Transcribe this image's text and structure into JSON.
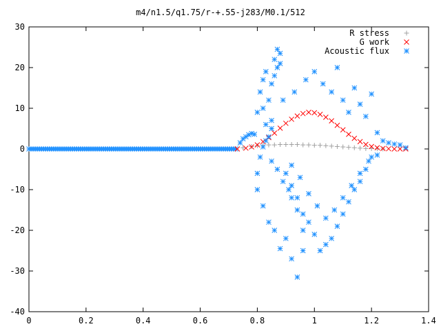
{
  "chart_data": {
    "type": "scatter",
    "title": "m4/n1.5/q1.75/r-+.55-j283/M0.1/512",
    "xlabel": "",
    "ylabel": "",
    "xlim": [
      0,
      1.4
    ],
    "ylim": [
      -40,
      30
    ],
    "xticks": [
      0,
      0.2,
      0.4,
      0.6,
      0.8,
      1,
      1.2,
      1.4
    ],
    "yticks": [
      -40,
      -30,
      -20,
      -10,
      0,
      10,
      20,
      30
    ],
    "xtick_labels": [
      "0",
      "0.2",
      "0.4",
      "0.6",
      "0.8",
      "1",
      "1.2",
      "1.4"
    ],
    "ytick_labels": [
      "-40",
      "-30",
      "-20",
      "-10",
      "0",
      "10",
      "20",
      "30"
    ],
    "grid": false,
    "legend_position": "top-right",
    "series": [
      {
        "name": "R stress",
        "marker": "+",
        "color": "#a0a0a0",
        "x": [
          0.75,
          0.78,
          0.8,
          0.82,
          0.84,
          0.86,
          0.88,
          0.9,
          0.92,
          0.94,
          0.96,
          0.98,
          1.0,
          1.02,
          1.04,
          1.06,
          1.08,
          1.1,
          1.12,
          1.14,
          1.16,
          1.18,
          1.2,
          1.22,
          1.24
        ],
        "y": [
          0.3,
          0.6,
          0.8,
          0.9,
          1.0,
          1.0,
          1.1,
          1.1,
          1.1,
          1.1,
          1.0,
          1.0,
          0.9,
          0.9,
          0.8,
          0.7,
          0.6,
          0.5,
          0.4,
          0.3,
          0.2,
          0.1,
          0.1,
          0.05,
          0.0
        ]
      },
      {
        "name": "G work",
        "marker": "x",
        "color": "#ff0000",
        "x": [
          0.73,
          0.76,
          0.78,
          0.8,
          0.82,
          0.84,
          0.86,
          0.88,
          0.9,
          0.92,
          0.94,
          0.96,
          0.98,
          1.0,
          1.02,
          1.04,
          1.06,
          1.08,
          1.1,
          1.12,
          1.14,
          1.16,
          1.18,
          1.2,
          1.22,
          1.24,
          1.26,
          1.28,
          1.3,
          1.32
        ],
        "y": [
          0.0,
          0.2,
          0.5,
          1.0,
          1.8,
          2.8,
          3.9,
          5.1,
          6.3,
          7.3,
          8.1,
          8.7,
          9.0,
          8.9,
          8.5,
          7.8,
          6.9,
          5.8,
          4.7,
          3.6,
          2.6,
          1.8,
          1.1,
          0.6,
          0.3,
          0.1,
          0.05,
          0.0,
          0.0,
          0.0
        ]
      },
      {
        "name": "Acoustic flux",
        "marker": "*",
        "color": "#1e90ff",
        "x": [
          0.74,
          0.75,
          0.76,
          0.77,
          0.78,
          0.79,
          0.8,
          0.81,
          0.82,
          0.83,
          0.84,
          0.85,
          0.86,
          0.87,
          0.88,
          0.88,
          0.87,
          0.86,
          0.85,
          0.84,
          0.83,
          0.82,
          0.81,
          0.8,
          0.8,
          0.82,
          0.84,
          0.86,
          0.88,
          0.9,
          0.92,
          0.94,
          0.96,
          0.96,
          0.94,
          0.92,
          0.91,
          0.89,
          0.87,
          0.85,
          0.83,
          0.82,
          0.85,
          0.89,
          0.93,
          0.97,
          1.0,
          1.03,
          1.06,
          1.08,
          1.1,
          1.12,
          1.14,
          1.16,
          1.18,
          1.2,
          1.22,
          1.2,
          1.18,
          1.16,
          1.14,
          1.12,
          1.1,
          1.08,
          1.06,
          1.04,
          1.02,
          1.0,
          0.98,
          0.96,
          0.94,
          0.92,
          0.9,
          0.92,
          0.95,
          0.98,
          1.01,
          1.04,
          1.07,
          1.1,
          1.13,
          1.16,
          1.19,
          1.22,
          1.24,
          1.26,
          1.28,
          1.3,
          1.32
        ],
        "y": [
          1.5,
          2.5,
          3.0,
          3.5,
          3.8,
          3.6,
          9.0,
          14.0,
          17.0,
          19.0,
          12.0,
          16.0,
          22.0,
          24.5,
          23.5,
          21.0,
          20.0,
          18.0,
          5.0,
          3.0,
          2.0,
          0.5,
          -2.0,
          -6.0,
          -10.0,
          -14.0,
          -18.0,
          -20.0,
          -24.5,
          -22.0,
          -27.0,
          -31.5,
          -25.0,
          -20.0,
          -15.0,
          -12.0,
          -10.0,
          -8.0,
          -5.0,
          -3.0,
          6.0,
          10.0,
          7.0,
          12.0,
          14.0,
          17.0,
          19.0,
          16.0,
          14.0,
          20.0,
          12.0,
          9.0,
          15.0,
          11.0,
          8.0,
          13.5,
          4.0,
          -2.0,
          -5.0,
          -8.0,
          -10.0,
          -13.0,
          -16.0,
          -19.0,
          -22.0,
          -23.5,
          -25.0,
          -21.0,
          -18.0,
          -16.0,
          -12.0,
          -9.0,
          -6.0,
          -4.0,
          -7.0,
          -11.0,
          -14.0,
          -17.0,
          -15.0,
          -12.0,
          -9.0,
          -6.0,
          -3.0,
          -1.5,
          2.0,
          1.5,
          1.2,
          1.0,
          0.3
        ]
      }
    ],
    "flat_zero_segment": {
      "series": "Acoustic flux",
      "x_start": 0,
      "x_end": 0.73,
      "y": 0
    }
  }
}
